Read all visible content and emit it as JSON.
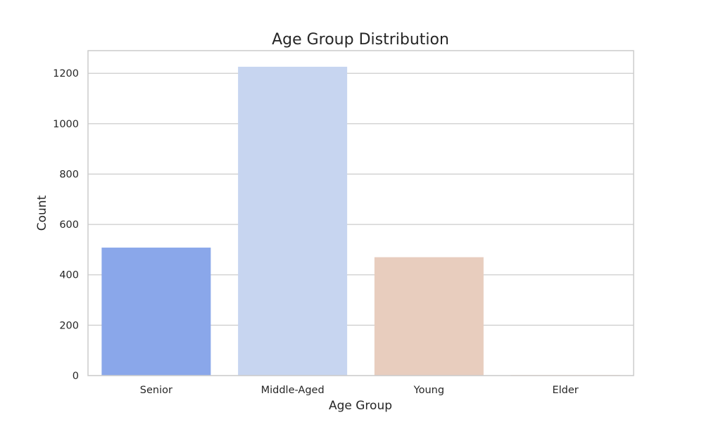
{
  "chart_data": {
    "type": "bar",
    "title": "Age Group Distribution",
    "xlabel": "Age Group",
    "ylabel": "Count",
    "categories": [
      "Senior",
      "Middle-Aged",
      "Young",
      "Elder"
    ],
    "values": [
      508,
      1226,
      470,
      2
    ],
    "colors": [
      "#8aa7ea",
      "#c7d5f0",
      "#e8cdbe",
      "#f2b79e"
    ],
    "ylim": [
      0,
      1290
    ],
    "yticks": [
      0,
      200,
      400,
      600,
      800,
      1000,
      1200
    ],
    "grid": "horizontal",
    "style": "whitegrid"
  }
}
